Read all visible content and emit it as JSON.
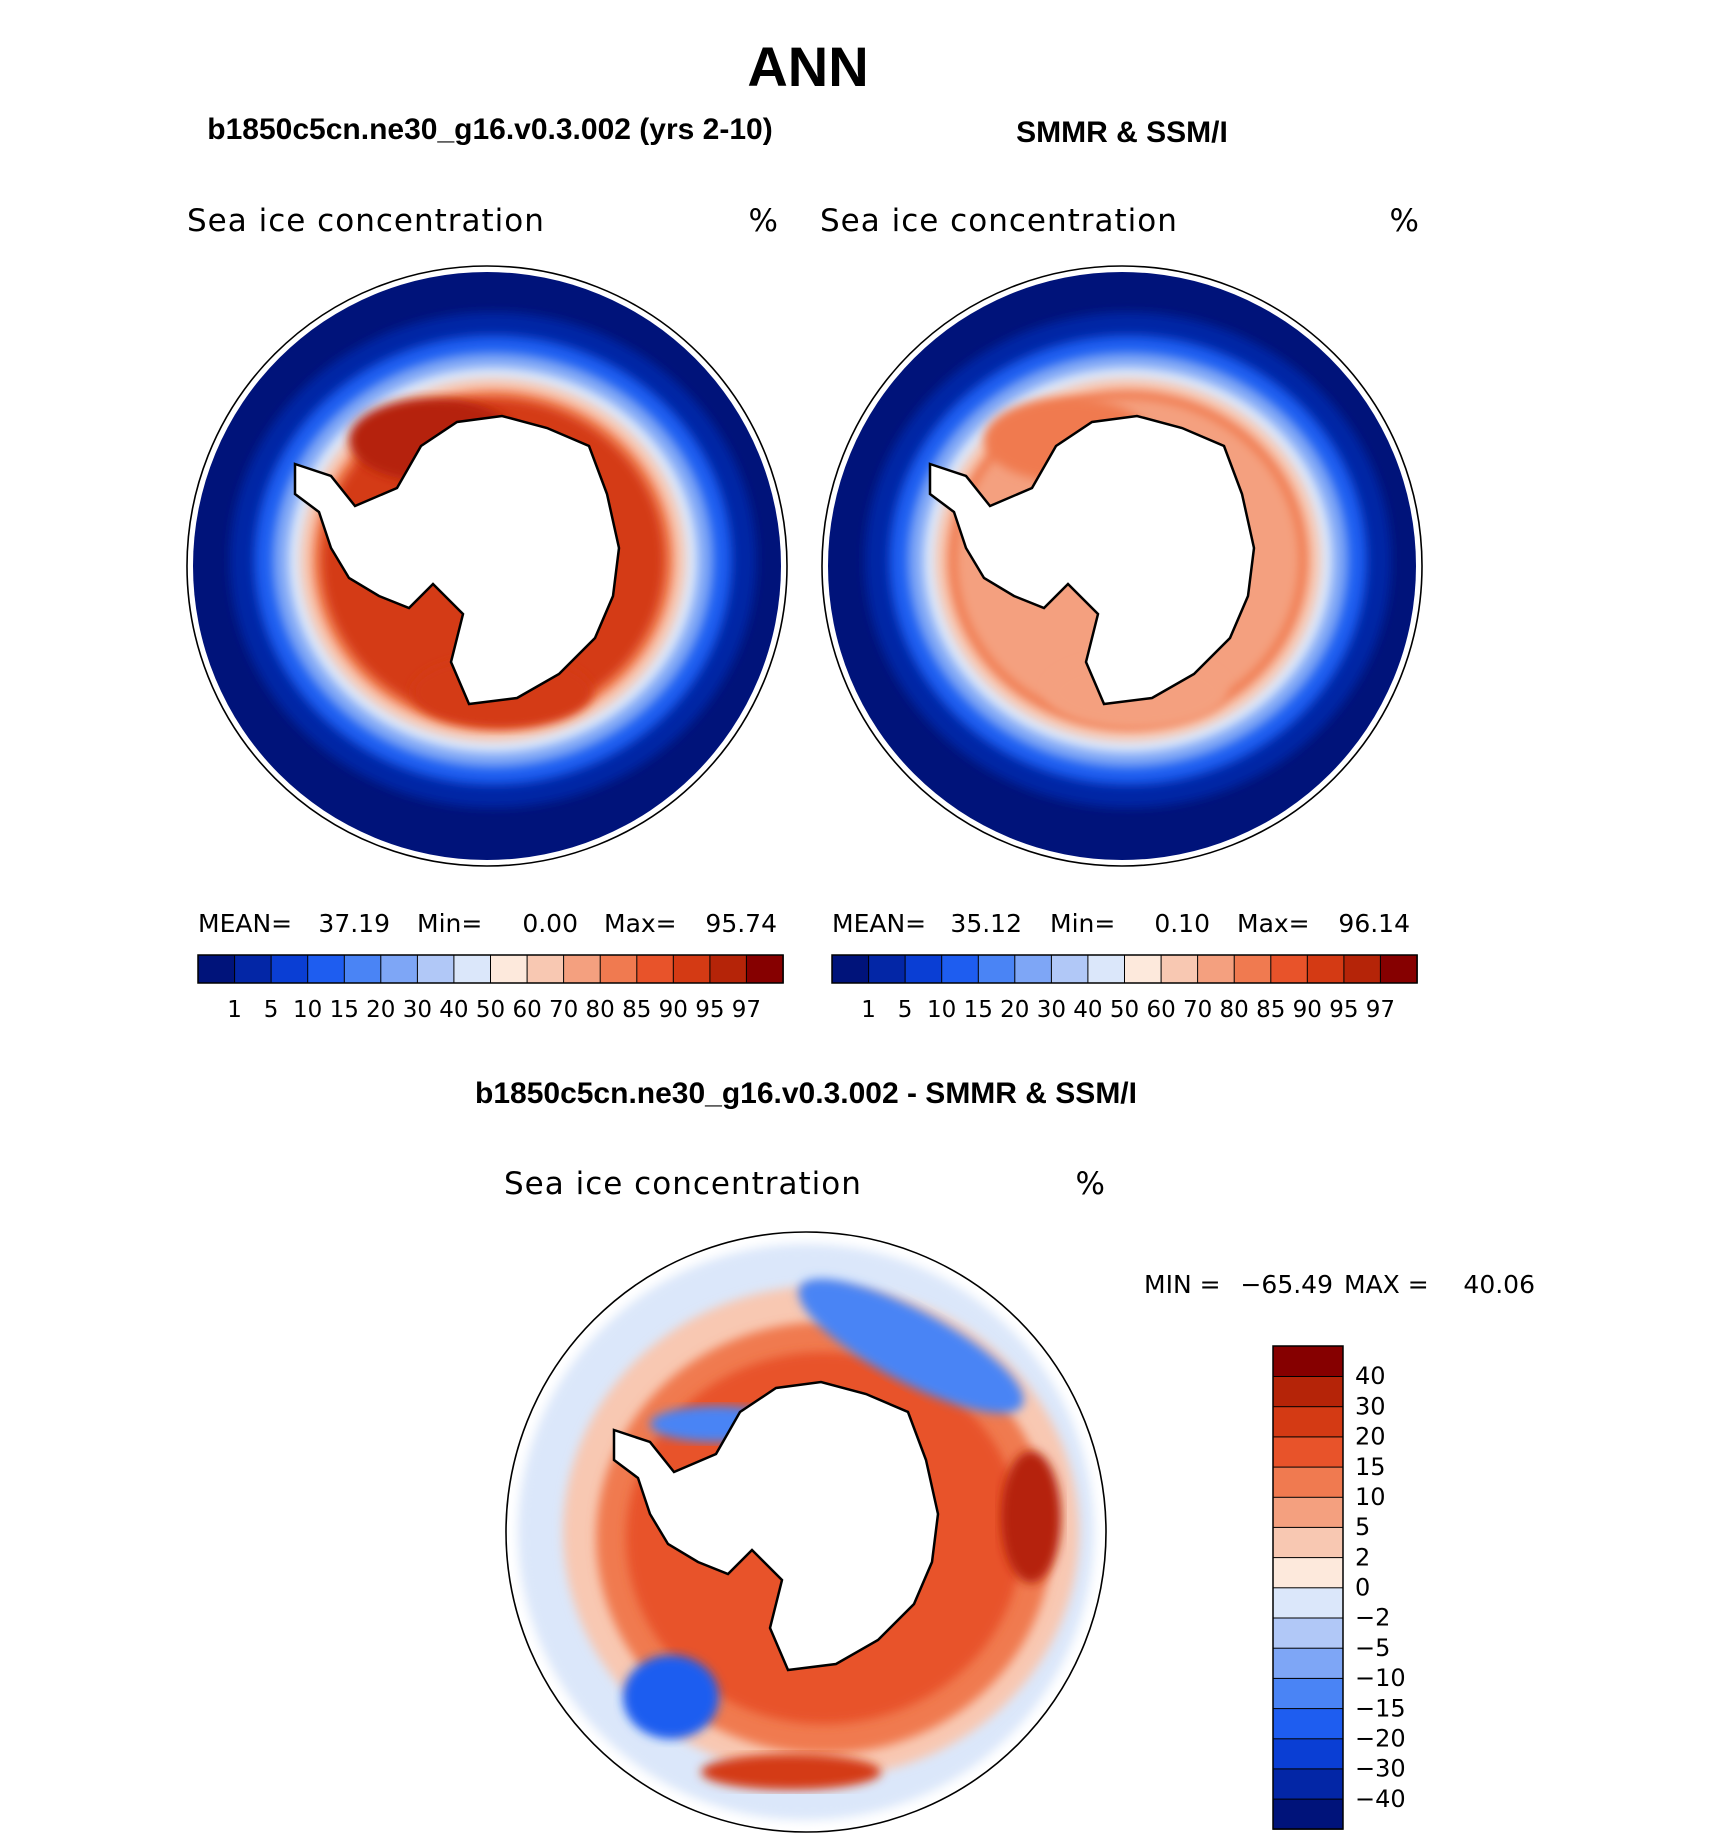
{
  "page": {
    "title": "ANN",
    "subtitle_model": "b1850c5cn.ne30_g16.v0.3.002 (yrs 2-10)",
    "subtitle_obs": "SMMR & SSM/I",
    "subtitle_diff": "b1850c5cn.ne30_g16.v0.3.002 - SMMR & SSM/I"
  },
  "chart_data": [
    {
      "type": "contour-map",
      "id": "model",
      "title": "b1850c5cn.ne30_g16.v0.3.002 (yrs 2-10)",
      "variable": "Sea ice concentration",
      "units": "%",
      "stats": {
        "mean_label": "MEAN=",
        "mean": "37.19",
        "min_label": "Min=",
        "min": "0.00",
        "max_label": "Max=",
        "max": "95.74"
      },
      "levels": [
        "1",
        "5",
        "10",
        "15",
        "20",
        "30",
        "40",
        "50",
        "60",
        "70",
        "80",
        "85",
        "90",
        "95",
        "97"
      ],
      "colors": [
        "#00137a",
        "#0326a6",
        "#0a3ed4",
        "#1e5df0",
        "#4a84f5",
        "#7ea6f6",
        "#b1c8f7",
        "#dbe7fa",
        "#fde9dc",
        "#f8c8b2",
        "#f4a07f",
        "#f07a50",
        "#e8532a",
        "#d43a14",
        "#b52408",
        "#860000"
      ]
    },
    {
      "type": "contour-map",
      "id": "obs",
      "title": "SMMR & SSM/I",
      "variable": "Sea ice concentration",
      "units": "%",
      "stats": {
        "mean_label": "MEAN=",
        "mean": "35.12",
        "min_label": "Min=",
        "min": "0.10",
        "max_label": "Max=",
        "max": "96.14"
      },
      "levels": [
        "1",
        "5",
        "10",
        "15",
        "20",
        "30",
        "40",
        "50",
        "60",
        "70",
        "80",
        "85",
        "90",
        "95",
        "97"
      ],
      "colors": [
        "#00137a",
        "#0326a6",
        "#0a3ed4",
        "#1e5df0",
        "#4a84f5",
        "#7ea6f6",
        "#b1c8f7",
        "#dbe7fa",
        "#fde9dc",
        "#f8c8b2",
        "#f4a07f",
        "#f07a50",
        "#e8532a",
        "#d43a14",
        "#b52408",
        "#860000"
      ]
    },
    {
      "type": "contour-map",
      "id": "diff",
      "title": "b1850c5cn.ne30_g16.v0.3.002 - SMMR & SSM/I",
      "variable": "Sea ice concentration",
      "units": "%",
      "stats": {
        "min_label": "MIN =",
        "min": "−65.49",
        "max_label": "MAX =",
        "max": "40.06"
      },
      "levels": [
        "−40",
        "−30",
        "−20",
        "−15",
        "−10",
        "−5",
        "−2",
        "0",
        "2",
        "5",
        "10",
        "15",
        "20",
        "30",
        "40"
      ],
      "colors": [
        "#00137a",
        "#0326a6",
        "#0a3ed4",
        "#1e5df0",
        "#4a84f5",
        "#7ea6f6",
        "#b1c8f7",
        "#dbe7fa",
        "#fde9dc",
        "#f8c8b2",
        "#f4a07f",
        "#f07a50",
        "#e8532a",
        "#d43a14",
        "#b52408",
        "#860000"
      ]
    }
  ]
}
